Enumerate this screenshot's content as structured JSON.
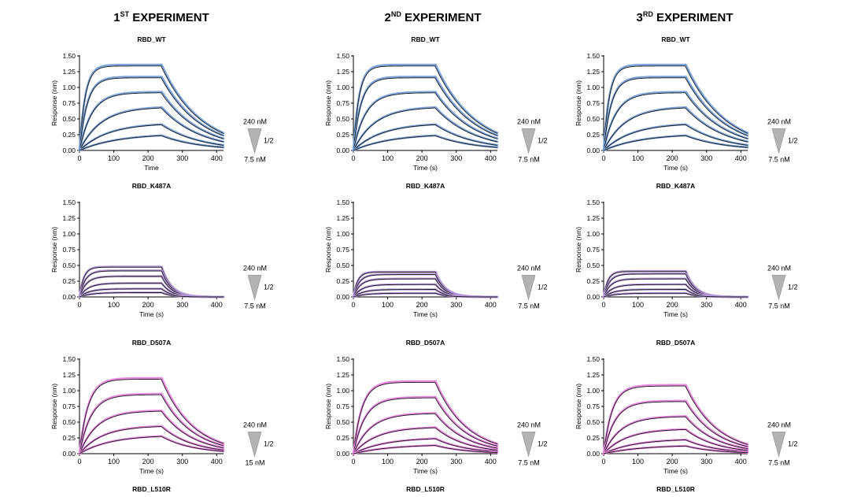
{
  "experiments": [
    {
      "num": "1",
      "sup": "ST",
      "rest": " EXPERIMENT"
    },
    {
      "num": "2",
      "sup": "ND",
      "rest": " EXPERIMENT"
    },
    {
      "num": "3",
      "sup": "RD",
      "rest": " EXPERIMENT"
    }
  ],
  "bottom_labels": [
    "RBD_L510R",
    "RBD_L510R",
    "RBD_L510R"
  ],
  "concentration_legend": {
    "ratio_label": "1/2"
  },
  "colors": {
    "RBD_WT": "#7ea6dc",
    "RBD_K487A": "#b69ad9",
    "RBD_D507A": "#e98ae0",
    "fit": "#1a1a1a"
  },
  "chart_data": [
    {
      "type": "line",
      "panel": "exp1-wt",
      "title": "RBD_WT",
      "xlabel": "Time",
      "ylabel": "Response (nm)",
      "xlim": [
        0,
        420
      ],
      "ylim": [
        0,
        1.5
      ],
      "xticks": [
        "0",
        "100",
        "200",
        "300",
        "400"
      ],
      "yticks": [
        "0.00",
        "0.25",
        "0.50",
        "0.75",
        "1.00",
        "1.25",
        "1.50"
      ],
      "association_end_s": 240,
      "series_color": "#7ea6dc",
      "legend_top": "240 nM",
      "legend_bottom": "7.5 nM",
      "series": [
        {
          "name": "240 nM",
          "plateau": 1.36,
          "k_on": 0.06,
          "k_off": 0.0088
        },
        {
          "name": "120 nM",
          "plateau": 1.17,
          "k_on": 0.045,
          "k_off": 0.0088
        },
        {
          "name": "60 nM",
          "plateau": 0.93,
          "k_on": 0.028,
          "k_off": 0.0088
        },
        {
          "name": "30 nM",
          "plateau": 0.7,
          "k_on": 0.016,
          "k_off": 0.0088
        },
        {
          "name": "15 nM",
          "plateau": 0.44,
          "k_on": 0.012,
          "k_off": 0.0088
        },
        {
          "name": "7.5 nM",
          "plateau": 0.27,
          "k_on": 0.009,
          "k_off": 0.0088
        }
      ]
    },
    {
      "type": "line",
      "panel": "exp2-wt",
      "title": "RBD_WT",
      "xlabel": "Time (s)",
      "ylabel": "Response (nm)",
      "xlim": [
        0,
        420
      ],
      "ylim": [
        0,
        1.5
      ],
      "xticks": [
        "0",
        "100",
        "200",
        "300",
        "400"
      ],
      "yticks": [
        "0.00",
        "0.25",
        "0.50",
        "0.75",
        "1.00",
        "1.25",
        "1.50"
      ],
      "association_end_s": 240,
      "series_color": "#7ea6dc",
      "legend_top": "240 nM",
      "legend_bottom": "7.5 nM",
      "series": [
        {
          "name": "240 nM",
          "plateau": 1.36,
          "k_on": 0.06,
          "k_off": 0.0088
        },
        {
          "name": "120 nM",
          "plateau": 1.17,
          "k_on": 0.045,
          "k_off": 0.0088
        },
        {
          "name": "60 nM",
          "plateau": 0.93,
          "k_on": 0.028,
          "k_off": 0.0088
        },
        {
          "name": "30 nM",
          "plateau": 0.7,
          "k_on": 0.016,
          "k_off": 0.0088
        },
        {
          "name": "15 nM",
          "plateau": 0.44,
          "k_on": 0.012,
          "k_off": 0.0088
        },
        {
          "name": "7.5 nM",
          "plateau": 0.27,
          "k_on": 0.009,
          "k_off": 0.0088
        }
      ]
    },
    {
      "type": "line",
      "panel": "exp3-wt",
      "title": "RBD_WT",
      "xlabel": "Time (s)",
      "ylabel": "Response (nm)",
      "xlim": [
        0,
        420
      ],
      "ylim": [
        0,
        1.5
      ],
      "xticks": [
        "0",
        "100",
        "200",
        "300",
        "400"
      ],
      "yticks": [
        "0.00",
        "0.25",
        "0.50",
        "0.75",
        "1.00",
        "1.25",
        "1.50"
      ],
      "association_end_s": 240,
      "series_color": "#7ea6dc",
      "legend_top": "240 nM",
      "legend_bottom": "7.5 nM",
      "series": [
        {
          "name": "240 nM",
          "plateau": 1.36,
          "k_on": 0.06,
          "k_off": 0.0088
        },
        {
          "name": "120 nM",
          "plateau": 1.17,
          "k_on": 0.045,
          "k_off": 0.0088
        },
        {
          "name": "60 nM",
          "plateau": 0.93,
          "k_on": 0.028,
          "k_off": 0.0088
        },
        {
          "name": "30 nM",
          "plateau": 0.7,
          "k_on": 0.016,
          "k_off": 0.0088
        },
        {
          "name": "15 nM",
          "plateau": 0.44,
          "k_on": 0.012,
          "k_off": 0.0088
        },
        {
          "name": "7.5 nM",
          "plateau": 0.27,
          "k_on": 0.009,
          "k_off": 0.0088
        }
      ]
    },
    {
      "type": "line",
      "panel": "exp1-k487a",
      "title": "RBD_K487A",
      "xlabel": "Time (s)",
      "ylabel": "Response (nm)",
      "xlim": [
        0,
        420
      ],
      "ylim": [
        0,
        1.5
      ],
      "xticks": [
        "0",
        "100",
        "200",
        "300",
        "400"
      ],
      "yticks": [
        "0.00",
        "0.25",
        "0.50",
        "0.75",
        "1.00",
        "1.25",
        "1.50"
      ],
      "association_end_s": 240,
      "series_color": "#b69ad9",
      "legend_top": "240 nM",
      "legend_bottom": "7.5 nM",
      "series": [
        {
          "name": "240 nM",
          "plateau": 0.48,
          "k_on": 0.08,
          "k_off": 0.035
        },
        {
          "name": "120 nM",
          "plateau": 0.42,
          "k_on": 0.06,
          "k_off": 0.035
        },
        {
          "name": "60 nM",
          "plateau": 0.33,
          "k_on": 0.05,
          "k_off": 0.035
        },
        {
          "name": "30 nM",
          "plateau": 0.22,
          "k_on": 0.04,
          "k_off": 0.035
        },
        {
          "name": "15 nM",
          "plateau": 0.13,
          "k_on": 0.035,
          "k_off": 0.035
        },
        {
          "name": "7.5 nM",
          "plateau": 0.07,
          "k_on": 0.03,
          "k_off": 0.035
        }
      ]
    },
    {
      "type": "line",
      "panel": "exp2-k487a",
      "title": "RBD_K487A",
      "xlabel": "Time (s)",
      "ylabel": "Response (nm)",
      "xlim": [
        0,
        420
      ],
      "ylim": [
        0,
        1.5
      ],
      "xticks": [
        "0",
        "100",
        "200",
        "300",
        "400"
      ],
      "yticks": [
        "0.00",
        "0.25",
        "0.50",
        "0.75",
        "1.00",
        "1.25",
        "1.50"
      ],
      "association_end_s": 240,
      "series_color": "#b69ad9",
      "legend_top": "240 nM",
      "legend_bottom": "7.5 nM",
      "series": [
        {
          "name": "240 nM",
          "plateau": 0.4,
          "k_on": 0.08,
          "k_off": 0.035
        },
        {
          "name": "120 nM",
          "plateau": 0.36,
          "k_on": 0.06,
          "k_off": 0.035
        },
        {
          "name": "60 nM",
          "plateau": 0.29,
          "k_on": 0.05,
          "k_off": 0.035
        },
        {
          "name": "30 nM",
          "plateau": 0.2,
          "k_on": 0.04,
          "k_off": 0.035
        },
        {
          "name": "15 nM",
          "plateau": 0.12,
          "k_on": 0.035,
          "k_off": 0.035
        },
        {
          "name": "7.5 nM",
          "plateau": 0.06,
          "k_on": 0.03,
          "k_off": 0.035
        }
      ]
    },
    {
      "type": "line",
      "panel": "exp3-k487a",
      "title": "RBD_K487A",
      "xlabel": "Time (s)",
      "ylabel": "Response (nm)",
      "xlim": [
        0,
        420
      ],
      "ylim": [
        0,
        1.5
      ],
      "xticks": [
        "0",
        "100",
        "200",
        "300",
        "400"
      ],
      "yticks": [
        "0.00",
        "0.25",
        "0.50",
        "0.75",
        "1.00",
        "1.25",
        "1.50"
      ],
      "association_end_s": 240,
      "series_color": "#b69ad9",
      "legend_top": "240 nM",
      "legend_bottom": "7.5 nM",
      "series": [
        {
          "name": "240 nM",
          "plateau": 0.41,
          "k_on": 0.08,
          "k_off": 0.035
        },
        {
          "name": "120 nM",
          "plateau": 0.37,
          "k_on": 0.06,
          "k_off": 0.035
        },
        {
          "name": "60 nM",
          "plateau": 0.29,
          "k_on": 0.05,
          "k_off": 0.035
        },
        {
          "name": "30 nM",
          "plateau": 0.2,
          "k_on": 0.04,
          "k_off": 0.035
        },
        {
          "name": "15 nM",
          "plateau": 0.12,
          "k_on": 0.035,
          "k_off": 0.035
        },
        {
          "name": "7.5 nM",
          "plateau": 0.06,
          "k_on": 0.03,
          "k_off": 0.035
        }
      ]
    },
    {
      "type": "line",
      "panel": "exp1-d507a",
      "title": "RBD_D507A",
      "xlabel": "Time (s)",
      "ylabel": "Response (nm)",
      "xlim": [
        0,
        420
      ],
      "ylim": [
        0,
        1.5
      ],
      "xticks": [
        "0",
        "100",
        "200",
        "300",
        "400"
      ],
      "yticks": [
        "0.00",
        "0.25",
        "0.50",
        "0.75",
        "1.00",
        "1.25",
        "1.50"
      ],
      "association_end_s": 240,
      "series_color": "#e98ae0",
      "legend_top": "240 nM",
      "legend_bottom": "15 nM",
      "series": [
        {
          "name": "240 nM",
          "plateau": 1.2,
          "k_on": 0.04,
          "k_off": 0.011
        },
        {
          "name": "120 nM",
          "plateau": 0.95,
          "k_on": 0.03,
          "k_off": 0.011
        },
        {
          "name": "60 nM",
          "plateau": 0.69,
          "k_on": 0.02,
          "k_off": 0.011
        },
        {
          "name": "30 nM",
          "plateau": 0.45,
          "k_on": 0.015,
          "k_off": 0.011
        },
        {
          "name": "15 nM",
          "plateau": 0.3,
          "k_on": 0.011,
          "k_off": 0.011
        }
      ]
    },
    {
      "type": "line",
      "panel": "exp2-d507a",
      "title": "RBD_D507A",
      "xlabel": "Time (s)",
      "ylabel": "Response (nm)",
      "xlim": [
        0,
        420
      ],
      "ylim": [
        0,
        1.5
      ],
      "xticks": [
        "0",
        "100",
        "200",
        "300",
        "400"
      ],
      "yticks": [
        "0.00",
        "0.25",
        "0.50",
        "0.75",
        "1.00",
        "1.25",
        "1.50"
      ],
      "association_end_s": 240,
      "series_color": "#e98ae0",
      "legend_top": "240 nM",
      "legend_bottom": "7.5 nM",
      "series": [
        {
          "name": "240 nM",
          "plateau": 1.15,
          "k_on": 0.04,
          "k_off": 0.011
        },
        {
          "name": "120 nM",
          "plateau": 0.9,
          "k_on": 0.03,
          "k_off": 0.011
        },
        {
          "name": "60 nM",
          "plateau": 0.65,
          "k_on": 0.02,
          "k_off": 0.011
        },
        {
          "name": "30 nM",
          "plateau": 0.43,
          "k_on": 0.015,
          "k_off": 0.011
        },
        {
          "name": "15 nM",
          "plateau": 0.26,
          "k_on": 0.011,
          "k_off": 0.011
        },
        {
          "name": "7.5 nM",
          "plateau": 0.15,
          "k_on": 0.009,
          "k_off": 0.011
        }
      ]
    },
    {
      "type": "line",
      "panel": "exp3-d507a",
      "title": "RBD_D507A",
      "xlabel": "Time (s)",
      "ylabel": "Response (nm)",
      "xlim": [
        0,
        420
      ],
      "ylim": [
        0,
        1.5
      ],
      "xticks": [
        "0",
        "100",
        "200",
        "300",
        "400"
      ],
      "yticks": [
        "0.00",
        "0.25",
        "0.50",
        "0.75",
        "1.00",
        "1.25",
        "1.50"
      ],
      "association_end_s": 240,
      "series_color": "#e98ae0",
      "legend_top": "240 nM",
      "legend_bottom": "7.5 nM",
      "series": [
        {
          "name": "240 nM",
          "plateau": 1.09,
          "k_on": 0.04,
          "k_off": 0.011
        },
        {
          "name": "120 nM",
          "plateau": 0.84,
          "k_on": 0.03,
          "k_off": 0.011
        },
        {
          "name": "60 nM",
          "plateau": 0.6,
          "k_on": 0.02,
          "k_off": 0.011
        },
        {
          "name": "30 nM",
          "plateau": 0.4,
          "k_on": 0.015,
          "k_off": 0.011
        },
        {
          "name": "15 nM",
          "plateau": 0.24,
          "k_on": 0.011,
          "k_off": 0.011
        },
        {
          "name": "7.5 nM",
          "plateau": 0.14,
          "k_on": 0.009,
          "k_off": 0.011
        }
      ]
    }
  ]
}
